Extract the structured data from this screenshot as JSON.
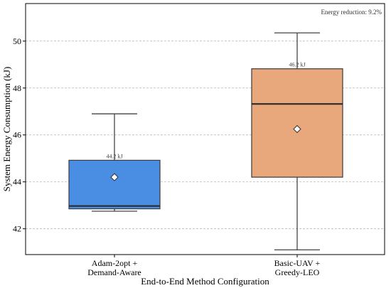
{
  "chart_data": {
    "type": "box",
    "title": "",
    "xlabel": "End-to-End Method Configuration",
    "ylabel": "System Energy Consumption (kJ)",
    "ylim": [
      40.9,
      51.6
    ],
    "yticks": [
      42,
      44,
      46,
      48,
      50
    ],
    "grid": "y-dashed",
    "categories": [
      {
        "lines": [
          "Adam-2opt +",
          "Demand-Aware"
        ]
      },
      {
        "lines": [
          "Basic-UAV +",
          "Greedy-LEO"
        ]
      }
    ],
    "boxes": [
      {
        "name": "Adam-2opt + Demand-Aware",
        "whisker_low": 42.75,
        "q1": 42.85,
        "median": 42.97,
        "q3": 44.92,
        "whisker_high": 46.9,
        "mean": 44.2,
        "mean_label": "44.2 kJ",
        "color": "#4a8ee3"
      },
      {
        "name": "Basic-UAV + Greedy-LEO",
        "whisker_low": 41.1,
        "q1": 44.2,
        "median": 47.32,
        "q3": 48.82,
        "whisker_high": 50.35,
        "mean": 46.25,
        "mean_label": "46.2 kJ",
        "color": "#e8a87c"
      }
    ],
    "annotation": "Energy reduction: 9.2%"
  }
}
